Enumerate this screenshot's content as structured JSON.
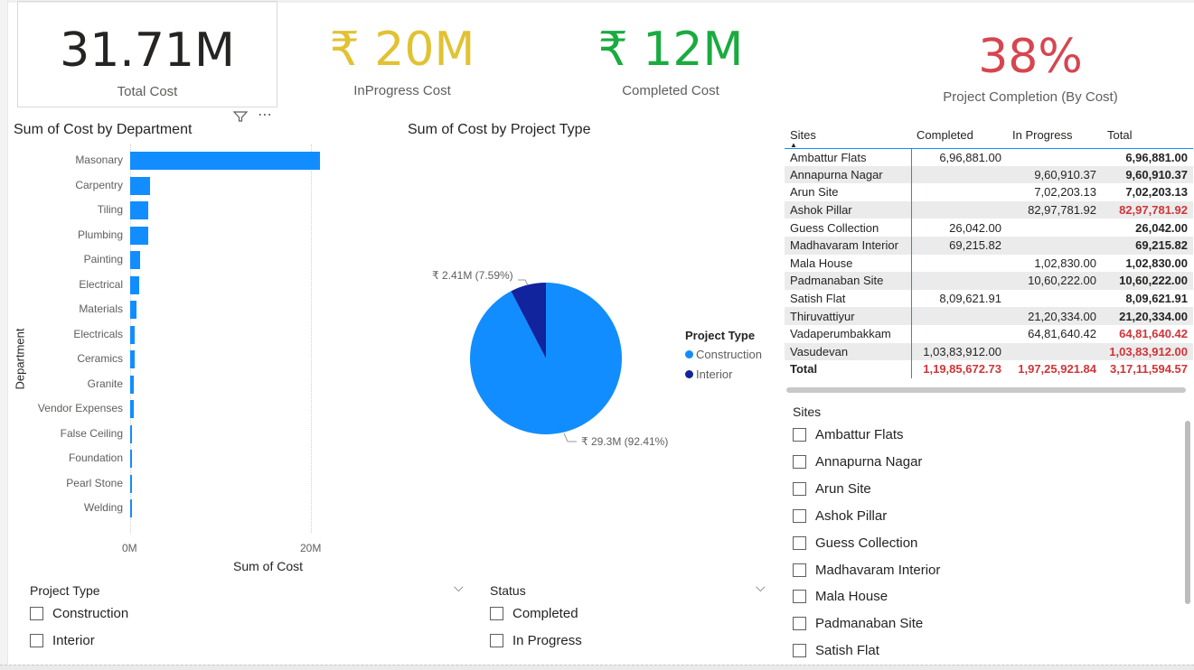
{
  "kpis": {
    "total_cost": {
      "value": "31.71M",
      "label": "Total Cost"
    },
    "inprogress_cost": {
      "value": "₹ 20M",
      "label": "InProgress Cost",
      "color": "#e1c233"
    },
    "completed_cost": {
      "value": "₹ 12M",
      "label": "Completed Cost",
      "color": "#1aab40"
    },
    "completion": {
      "value": "38%",
      "label": "Project Completion (By Cost)",
      "color": "#d64550"
    }
  },
  "colors": {
    "bar": "#118dff",
    "construction": "#118dff",
    "interior": "#12239e",
    "negative": "#d13438"
  },
  "header_icons": [
    "filter-icon",
    "more-options-icon"
  ],
  "bar_chart": {
    "title": "Sum of Cost by Department",
    "xlabel": "Sum of Cost",
    "ylabel": "Department",
    "ticks": [
      "0M",
      "20M"
    ]
  },
  "pie_chart": {
    "title": "Sum of Cost by Project Type",
    "legend_title": "Project Type",
    "label_interior": "₹ 2.41M (7.59%)",
    "label_construction": "₹ 29.3M (92.41%)"
  },
  "chart_data": [
    {
      "type": "bar",
      "orientation": "horizontal",
      "title": "Sum of Cost by Department",
      "xlabel": "Sum of Cost",
      "ylabel": "Department",
      "categories": [
        "Masonary",
        "Carpentry",
        "Tiling",
        "Plumbing",
        "Painting",
        "Electrical",
        "Materials",
        "Electricals",
        "Ceramics",
        "Granite",
        "Vendor Expenses",
        "False Ceiling",
        "Foundation",
        "Pearl Stone",
        "Welding"
      ],
      "values": [
        21.0,
        2.2,
        2.0,
        1.95,
        1.1,
        1.0,
        0.7,
        0.5,
        0.45,
        0.4,
        0.35,
        0.2,
        0.15,
        0.12,
        0.1
      ],
      "unit": "M",
      "xlim": [
        0,
        22
      ],
      "grid": true
    },
    {
      "type": "pie",
      "title": "Sum of Cost by Project Type",
      "legend_title": "Project Type",
      "legend_position": "right",
      "series": [
        {
          "name": "Construction",
          "value": 29.3,
          "percent": 92.41,
          "label": "₹ 29.3M (92.41%)"
        },
        {
          "name": "Interior",
          "value": 2.41,
          "percent": 7.59,
          "label": "₹ 2.41M (7.59%)"
        }
      ]
    }
  ],
  "matrix": {
    "headers": [
      "Sites",
      "Completed",
      "In Progress",
      "Total"
    ],
    "rows": [
      {
        "site": "Ambattur Flats",
        "completed": "6,96,881.00",
        "inprogress": "",
        "total": "6,96,881.00",
        "red": false
      },
      {
        "site": "Annapurna Nagar",
        "completed": "",
        "inprogress": "9,60,910.37",
        "total": "9,60,910.37",
        "red": false
      },
      {
        "site": "Arun Site",
        "completed": "",
        "inprogress": "7,02,203.13",
        "total": "7,02,203.13",
        "red": false
      },
      {
        "site": "Ashok Pillar",
        "completed": "",
        "inprogress": "82,97,781.92",
        "total": "82,97,781.92",
        "red": true
      },
      {
        "site": "Guess Collection",
        "completed": "26,042.00",
        "inprogress": "",
        "total": "26,042.00",
        "red": false
      },
      {
        "site": "Madhavaram Interior",
        "completed": "69,215.82",
        "inprogress": "",
        "total": "69,215.82",
        "red": false
      },
      {
        "site": "Mala House",
        "completed": "",
        "inprogress": "1,02,830.00",
        "total": "1,02,830.00",
        "red": false
      },
      {
        "site": "Padmanaban Site",
        "completed": "",
        "inprogress": "10,60,222.00",
        "total": "10,60,222.00",
        "red": false
      },
      {
        "site": "Satish Flat",
        "completed": "8,09,621.91",
        "inprogress": "",
        "total": "8,09,621.91",
        "red": false
      },
      {
        "site": "Thiruvattiyur",
        "completed": "",
        "inprogress": "21,20,334.00",
        "total": "21,20,334.00",
        "red": false
      },
      {
        "site": "Vadaperumbakkam",
        "completed": "",
        "inprogress": "64,81,640.42",
        "total": "64,81,640.42",
        "red": true
      },
      {
        "site": "Vasudevan",
        "completed": "1,03,83,912.00",
        "inprogress": "",
        "total": "1,03,83,912.00",
        "red": true
      }
    ],
    "total_row": {
      "label": "Total",
      "completed": "1,19,85,672.73",
      "inprogress": "1,97,25,921.84",
      "total": "3,17,11,594.57"
    }
  },
  "slicers": {
    "project_type": {
      "title": "Project Type",
      "items": [
        "Construction",
        "Interior"
      ]
    },
    "status": {
      "title": "Status",
      "items": [
        "Completed",
        "In Progress"
      ]
    },
    "sites": {
      "title": "Sites",
      "items": [
        "Ambattur Flats",
        "Annapurna Nagar",
        "Arun Site",
        "Ashok Pillar",
        "Guess Collection",
        "Madhavaram Interior",
        "Mala House",
        "Padmanaban Site",
        "Satish Flat"
      ]
    }
  }
}
